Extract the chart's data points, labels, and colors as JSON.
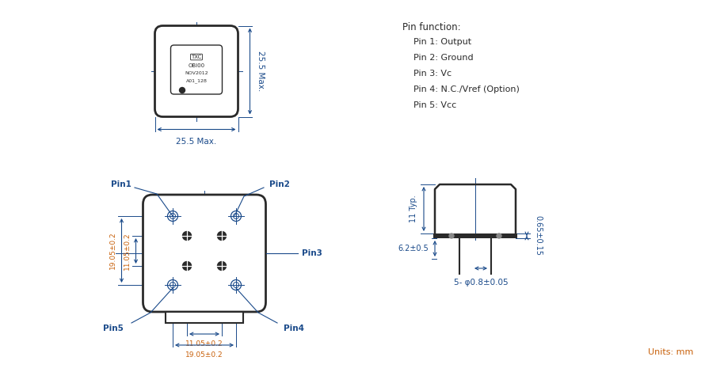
{
  "bg_color": "#ffffff",
  "blue": "#1a4a8a",
  "orange": "#c8600a",
  "dark_gray": "#2a2a2a",
  "pin_function_title": "Pin function:",
  "pin_functions": [
    "Pin 1: Output",
    "Pin 2: Ground",
    "Pin 3: Vc",
    "Pin 4: N.C./Vref (Option)",
    "Pin 5: Vcc"
  ],
  "units_text": "Units: mm",
  "top_label_w": "25.5 Max.",
  "top_label_h": "25.5 Max.",
  "dim_19_05": "19.05±0.2",
  "dim_11_05_v": "11.05±0.2",
  "dim_11_05_h": "11.05±0.2",
  "dim_19_05_h": "19.05±0.2",
  "dim_11typ": "11 Typ.",
  "dim_62": "6.2±0.5",
  "dim_065": "0.65±0.15",
  "dim_pin": "5- φ0.8±0.05",
  "txc_text": "TXC",
  "ob_text": "OBI00",
  "nov_text": "NOV2012",
  "a01_text": "A01_128"
}
